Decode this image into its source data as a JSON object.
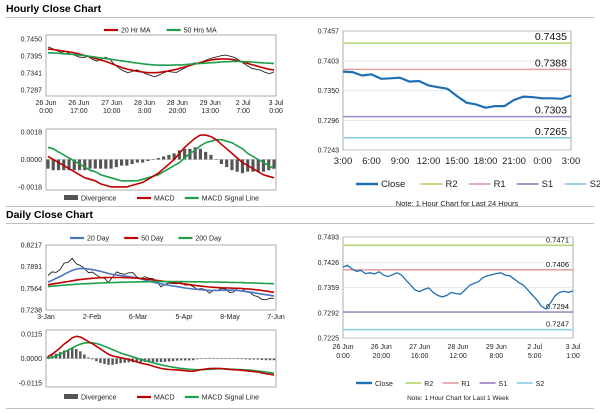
{
  "hourly": {
    "section_title": "Hourly Close Chart",
    "price": {
      "type": "line",
      "legend": [
        {
          "name": "20 Hr MA",
          "color": "#c00000"
        },
        {
          "name": "50 Hrs MA",
          "color": "#1e9e4a"
        }
      ],
      "y_ticks": [
        "0.7450",
        "0.7395",
        "0.7341",
        "0.7287"
      ],
      "ylim": [
        0.7268,
        0.7462
      ],
      "x_ticks": [
        [
          "26 Jun",
          "0:00"
        ],
        [
          "26 Jun",
          "17:00"
        ],
        [
          "27 Jun",
          "10:00"
        ],
        [
          "28 Jun",
          "3:00"
        ],
        [
          "28 Jun",
          "20:00"
        ],
        [
          "29 Jun",
          "13:00"
        ],
        [
          "2 Jul",
          "7:00"
        ],
        [
          "3 Jul",
          "0:00"
        ]
      ],
      "close_color": "#222222",
      "close": [
        0.7424,
        0.7419,
        0.7412,
        0.7407,
        0.741,
        0.7402,
        0.7398,
        0.7392,
        0.739,
        0.7394,
        0.7385,
        0.7379,
        0.7385,
        0.7391,
        0.7384,
        0.7368,
        0.7357,
        0.7348,
        0.7342,
        0.7346,
        0.7351,
        0.7346,
        0.7339,
        0.7334,
        0.7329,
        0.7334,
        0.7341,
        0.7347,
        0.7344,
        0.7343,
        0.7351,
        0.7358,
        0.7367,
        0.7373,
        0.7371,
        0.7378,
        0.7384,
        0.7389,
        0.7392,
        0.7396,
        0.7398,
        0.7395,
        0.7391,
        0.7383,
        0.7373,
        0.7364,
        0.7356,
        0.7353,
        0.735,
        0.7343,
        0.7339,
        0.7345
      ],
      "ma20": [
        0.7417,
        0.7416,
        0.7414,
        0.7412,
        0.741,
        0.7408,
        0.7405,
        0.7402,
        0.7398,
        0.7394,
        0.739,
        0.7386,
        0.7382,
        0.7378,
        0.7373,
        0.7367,
        0.7362,
        0.7357,
        0.7353,
        0.735,
        0.7347,
        0.7345,
        0.7343,
        0.7342,
        0.7342,
        0.7343,
        0.7345,
        0.7347,
        0.735,
        0.7353,
        0.7357,
        0.7361,
        0.7365,
        0.7369,
        0.7373,
        0.7377,
        0.738,
        0.7383,
        0.7385,
        0.7386,
        0.7386,
        0.7385,
        0.7383,
        0.738,
        0.7376,
        0.7372,
        0.7368,
        0.7364,
        0.736,
        0.7356,
        0.7353,
        0.7351
      ],
      "ma50": [
        0.7405,
        0.7405,
        0.7404,
        0.7403,
        0.7402,
        0.7401,
        0.74,
        0.7398,
        0.7397,
        0.7395,
        0.7393,
        0.7391,
        0.7389,
        0.7387,
        0.7385,
        0.7383,
        0.7381,
        0.7379,
        0.7377,
        0.7375,
        0.7373,
        0.7371,
        0.7369,
        0.7368,
        0.7367,
        0.7366,
        0.7366,
        0.7366,
        0.7366,
        0.7367,
        0.7367,
        0.7368,
        0.7369,
        0.737,
        0.7371,
        0.7372,
        0.7373,
        0.7374,
        0.7375,
        0.7376,
        0.7377,
        0.7377,
        0.7378,
        0.7378,
        0.7377,
        0.7377,
        0.7376,
        0.7375,
        0.7374,
        0.7373,
        0.7372,
        0.7371
      ]
    },
    "macd": {
      "type": "line",
      "y_ticks": [
        "0.0018",
        "0.0000",
        "-0.0018"
      ],
      "ylim": [
        -0.002,
        0.002
      ],
      "legend": [
        {
          "name": "Divergence",
          "color": "#555555"
        },
        {
          "name": "MACD",
          "color": "#c00000"
        },
        {
          "name": "MACD Signal Line",
          "color": "#1e9e4a"
        }
      ],
      "macd": [
        0.0002,
        0.0,
        -0.0002,
        -0.0004,
        -0.0006,
        -0.0008,
        -0.001,
        -0.0012,
        -0.0013,
        -0.0014,
        -0.0016,
        -0.0017,
        -0.0018,
        -0.0018,
        -0.0018,
        -0.0018,
        -0.0017,
        -0.0016,
        -0.0015,
        -0.0013,
        -0.0011,
        -0.0009,
        -0.0006,
        -0.0003,
        0.0,
        0.0004,
        0.0008,
        0.0011,
        0.0014,
        0.0016,
        0.0016,
        0.0015,
        0.0013,
        0.001,
        0.0007,
        0.0004,
        0.0001,
        -0.0002,
        -0.0004,
        -0.0006,
        -0.0008,
        -0.001,
        -0.0011,
        -0.0012
      ],
      "signal": [
        0.0008,
        0.0007,
        0.0005,
        0.0003,
        0.0001,
        -0.0001,
        -0.0003,
        -0.0005,
        -0.0007,
        -0.0008,
        -0.001,
        -0.0011,
        -0.0012,
        -0.0013,
        -0.0014,
        -0.0014,
        -0.0014,
        -0.0014,
        -0.0013,
        -0.0012,
        -0.0011,
        -0.001,
        -0.0008,
        -0.0006,
        -0.0004,
        -0.0002,
        0.0001,
        0.0004,
        0.0006,
        0.0009,
        0.0011,
        0.0012,
        0.0013,
        0.0013,
        0.0012,
        0.0011,
        0.0009,
        0.0007,
        0.0004,
        0.0002,
        0.0,
        -0.0002,
        -0.0004,
        -0.0006
      ],
      "divergence": [
        -0.0006,
        -0.0007,
        -0.0007,
        -0.0007,
        -0.0007,
        -0.0007,
        -0.0007,
        -0.0007,
        -0.0006,
        -0.0006,
        -0.0006,
        -0.0006,
        -0.0006,
        -0.0005,
        -0.0004,
        -0.0004,
        -0.0003,
        -0.0002,
        -0.0002,
        -0.0001,
        0.0,
        0.0001,
        0.0002,
        0.0003,
        0.0004,
        0.0006,
        0.0007,
        0.0007,
        0.0008,
        0.0007,
        0.0005,
        0.0003,
        0.0,
        -0.0003,
        -0.0005,
        -0.0007,
        -0.0008,
        -0.0009,
        -0.0008,
        -0.0008,
        -0.0008,
        -0.0008,
        -0.0007,
        -0.0006
      ]
    },
    "sr": {
      "type": "line",
      "y_ticks": [
        "0.7457",
        "0.7403",
        "0.7350",
        "0.7296",
        "0.7243"
      ],
      "ylim": [
        0.7243,
        0.7457
      ],
      "x_ticks": [
        "3:00",
        "6:00",
        "9:00",
        "12:00",
        "15:00",
        "18:00",
        "21:00",
        "0:00",
        "3:00"
      ],
      "close": [
        0.7384,
        0.7383,
        0.7377,
        0.7379,
        0.7371,
        0.7372,
        0.7373,
        0.7366,
        0.7367,
        0.7359,
        0.7356,
        0.7353,
        0.734,
        0.7328,
        0.7325,
        0.7319,
        0.7322,
        0.7322,
        0.7333,
        0.7339,
        0.7338,
        0.7336,
        0.7336,
        0.7335,
        0.7341
      ],
      "levels": [
        {
          "key": "R2",
          "value": 0.7435,
          "label": "0.7435",
          "color": "#b5d87a"
        },
        {
          "key": "R1",
          "value": 0.7388,
          "label": "0.7388",
          "color": "#e6a3a3"
        },
        {
          "key": "S1",
          "value": 0.7303,
          "label": "0.7303",
          "color": "#9e88c7"
        },
        {
          "key": "S2",
          "value": 0.7265,
          "label": "0.7265",
          "color": "#8fd1e8"
        }
      ],
      "close_color": "#1f6fb2",
      "legend": [
        "Close",
        "R2",
        "R1",
        "S1",
        "S2"
      ],
      "note": "Note: 1 Hour Chart for Last 24 Hours"
    }
  },
  "daily": {
    "section_title": "Daily Close Chart",
    "price": {
      "type": "line",
      "legend": [
        {
          "name": "20 Day",
          "color": "#4a73c4"
        },
        {
          "name": "50 Day",
          "color": "#c00000"
        },
        {
          "name": "200 Day",
          "color": "#1e9e4a"
        }
      ],
      "y_ticks": [
        "0.8217",
        "0.7891",
        "0.7564",
        "0.7238"
      ],
      "ylim": [
        0.7238,
        0.8217
      ],
      "x_ticks": [
        "3-Jan",
        "2-Feb",
        "6-Mar",
        "5-Apr",
        "8-May",
        "7-Jun"
      ],
      "close_color": "#222222",
      "close": [
        0.7758,
        0.7812,
        0.7804,
        0.7846,
        0.7945,
        0.7956,
        0.8016,
        0.7934,
        0.7909,
        0.7868,
        0.7801,
        0.7809,
        0.7765,
        0.7726,
        0.7717,
        0.7653,
        0.7733,
        0.7812,
        0.779,
        0.7776,
        0.7799,
        0.7802,
        0.7733,
        0.7714,
        0.7739,
        0.7716,
        0.7711,
        0.7667,
        0.7586,
        0.7624,
        0.7645,
        0.7637,
        0.7634,
        0.7652,
        0.7613,
        0.7619,
        0.7589,
        0.7551,
        0.7561,
        0.7545,
        0.7491,
        0.7536,
        0.7532,
        0.7564,
        0.7554,
        0.7502,
        0.7507,
        0.7566,
        0.7567,
        0.7509,
        0.7503,
        0.7457,
        0.7439,
        0.7398,
        0.7391,
        0.7415,
        0.7414
      ],
      "ma20": [
        0.7658,
        0.7686,
        0.7714,
        0.7742,
        0.7774,
        0.7806,
        0.7834,
        0.7854,
        0.7864,
        0.7862,
        0.7856,
        0.7846,
        0.7834,
        0.782,
        0.7804,
        0.7788,
        0.7774,
        0.7764,
        0.7756,
        0.775,
        0.7742,
        0.7732,
        0.772,
        0.7706,
        0.769,
        0.7674,
        0.7658,
        0.7644,
        0.7632,
        0.762,
        0.761,
        0.76,
        0.759,
        0.758,
        0.757,
        0.7562,
        0.7555,
        0.7549,
        0.7543,
        0.7537,
        0.7533,
        0.7532,
        0.7532,
        0.7534,
        0.7536,
        0.7537,
        0.7536,
        0.7532,
        0.7526,
        0.7518,
        0.7508,
        0.7498,
        0.7488,
        0.7478,
        0.7468,
        0.7459,
        0.7451
      ],
      "ma50": [
        0.7618,
        0.7628,
        0.7638,
        0.7648,
        0.7658,
        0.7668,
        0.7678,
        0.7688,
        0.7696,
        0.7704,
        0.771,
        0.7716,
        0.772,
        0.7724,
        0.7726,
        0.7728,
        0.7728,
        0.7728,
        0.7727,
        0.7726,
        0.7724,
        0.7722,
        0.7718,
        0.7713,
        0.7707,
        0.77,
        0.7692,
        0.7684,
        0.7676,
        0.7668,
        0.766,
        0.7652,
        0.7644,
        0.7636,
        0.7628,
        0.762,
        0.7612,
        0.7604,
        0.7597,
        0.7591,
        0.7585,
        0.758,
        0.7576,
        0.7573,
        0.7571,
        0.7569,
        0.7567,
        0.7565,
        0.7562,
        0.7558,
        0.7553,
        0.7547,
        0.754,
        0.7532,
        0.7523,
        0.7514,
        0.7505
      ],
      "ma200": [
        0.759,
        0.7596,
        0.7602,
        0.7607,
        0.7612,
        0.7617,
        0.7621,
        0.7625,
        0.7629,
        0.7633,
        0.7636,
        0.7639,
        0.7642,
        0.7645,
        0.7647,
        0.7649,
        0.7651,
        0.7653,
        0.7655,
        0.7657,
        0.7658,
        0.7659,
        0.7661,
        0.7662,
        0.7663,
        0.7664,
        0.7664,
        0.7665,
        0.7665,
        0.7665,
        0.7665,
        0.7665,
        0.7665,
        0.7665,
        0.7664,
        0.7664,
        0.7663,
        0.7663,
        0.7662,
        0.7661,
        0.766,
        0.7659,
        0.7658,
        0.7657,
        0.7656,
        0.7654,
        0.7653,
        0.7652,
        0.765,
        0.7648,
        0.7646,
        0.7644,
        0.7642,
        0.764,
        0.7637,
        0.7635,
        0.7633
      ]
    },
    "macd": {
      "type": "line",
      "y_ticks": [
        "0.0115",
        "0.0000",
        "-0.0115"
      ],
      "ylim": [
        -0.0135,
        0.0135
      ],
      "legend": [
        {
          "name": "Divergence",
          "color": "#555555"
        },
        {
          "name": "MACD",
          "color": "#c00000"
        },
        {
          "name": "MACD Signal Line",
          "color": "#1e9e4a"
        }
      ],
      "macd": [
        0.001,
        0.002,
        0.0035,
        0.005,
        0.0068,
        0.0082,
        0.0098,
        0.0105,
        0.0102,
        0.0092,
        0.008,
        0.007,
        0.0058,
        0.0045,
        0.0032,
        0.002,
        0.0012,
        0.0008,
        0.0004,
        0.0,
        -0.0004,
        -0.001,
        -0.0016,
        -0.0022,
        -0.0026,
        -0.003,
        -0.0036,
        -0.0042,
        -0.0047,
        -0.005,
        -0.0052,
        -0.0053,
        -0.0054,
        -0.0056,
        -0.0058,
        -0.006,
        -0.006,
        -0.0057,
        -0.0053,
        -0.005,
        -0.0048,
        -0.0047,
        -0.0047,
        -0.0048,
        -0.005,
        -0.0052,
        -0.0053,
        -0.0054,
        -0.0056,
        -0.0058,
        -0.006,
        -0.0062,
        -0.0064,
        -0.0068,
        -0.0072,
        -0.0075,
        -0.0078
      ],
      "signal": [
        0.0,
        0.0006,
        0.0012,
        0.002,
        0.003,
        0.004,
        0.005,
        0.006,
        0.0068,
        0.0073,
        0.0075,
        0.0074,
        0.0071,
        0.0066,
        0.0058,
        0.005,
        0.0042,
        0.0034,
        0.0026,
        0.002,
        0.0014,
        0.0008,
        0.0002,
        -0.0004,
        -0.001,
        -0.0015,
        -0.002,
        -0.0025,
        -0.003,
        -0.0034,
        -0.0038,
        -0.0041,
        -0.0044,
        -0.0047,
        -0.0049,
        -0.0051,
        -0.0052,
        -0.0053,
        -0.0053,
        -0.0052,
        -0.0051,
        -0.005,
        -0.0049,
        -0.0049,
        -0.0049,
        -0.005,
        -0.0051,
        -0.0052,
        -0.0053,
        -0.0054,
        -0.0055,
        -0.0057,
        -0.0059,
        -0.0061,
        -0.0064,
        -0.0067,
        -0.007
      ],
      "divergence": [
        0.001,
        0.0014,
        0.0023,
        0.003,
        0.0038,
        0.0042,
        0.0048,
        0.0045,
        0.0034,
        0.0019,
        0.0005,
        -0.0004,
        -0.0013,
        -0.0021,
        -0.0026,
        -0.003,
        -0.003,
        -0.0026,
        -0.0022,
        -0.002,
        -0.0018,
        -0.0018,
        -0.0018,
        -0.0018,
        -0.0016,
        -0.0015,
        -0.0016,
        -0.0017,
        -0.0017,
        -0.0016,
        -0.0014,
        -0.0012,
        -0.001,
        -0.0009,
        -0.0009,
        -0.0009,
        -0.0008,
        -0.0004,
        0.0,
        0.0002,
        0.0003,
        0.0003,
        0.0002,
        0.0001,
        -0.0001,
        -0.0002,
        -0.0002,
        -0.0002,
        -0.0003,
        -0.0004,
        -0.0005,
        -0.0005,
        -0.0005,
        -0.0007,
        -0.0008,
        -0.0008,
        -0.0008
      ]
    },
    "sr": {
      "type": "line",
      "y_ticks": [
        "0.7493",
        "0.7426",
        "0.7359",
        "0.7292",
        "0.7225"
      ],
      "ylim": [
        0.7225,
        0.7493
      ],
      "x_ticks": [
        [
          "26 Jun",
          "0:00"
        ],
        [
          "26 Jun",
          "20:00"
        ],
        [
          "27 Jun",
          "16:00"
        ],
        [
          "28 Jun",
          "12:00"
        ],
        [
          "29 Jun",
          "8:00"
        ],
        [
          "2 Jul",
          "5:00"
        ],
        [
          "3 Jul",
          "1:00"
        ]
      ],
      "close": [
        0.7413,
        0.7418,
        0.7408,
        0.7402,
        0.7404,
        0.7396,
        0.7398,
        0.7395,
        0.7401,
        0.7392,
        0.7388,
        0.7393,
        0.7398,
        0.7392,
        0.7378,
        0.7366,
        0.7352,
        0.7348,
        0.7354,
        0.7358,
        0.7346,
        0.7338,
        0.7334,
        0.7338,
        0.7346,
        0.7343,
        0.7341,
        0.7352,
        0.7364,
        0.737,
        0.7374,
        0.7385,
        0.739,
        0.7393,
        0.7396,
        0.7398,
        0.7392,
        0.739,
        0.7381,
        0.7372,
        0.7365,
        0.7352,
        0.7339,
        0.7326,
        0.7309,
        0.7302,
        0.7318,
        0.7337,
        0.7346,
        0.7349,
        0.7346,
        0.735
      ],
      "levels": [
        {
          "key": "R2",
          "value": 0.7471,
          "label": "0.7471",
          "color": "#b5d87a"
        },
        {
          "key": "R1",
          "value": 0.7406,
          "label": "0.7406",
          "color": "#e6a3a3"
        },
        {
          "key": "S1",
          "value": 0.7294,
          "label": "0.7294",
          "color": "#9e88c7"
        },
        {
          "key": "S2",
          "value": 0.7247,
          "label": "0.7247",
          "color": "#8fd1e8"
        }
      ],
      "close_color": "#1f6fb2",
      "legend": [
        "Close",
        "R2",
        "R1",
        "S1",
        "S2"
      ],
      "note": "Note: 1 Hour Chart for Last 1 Week"
    }
  }
}
